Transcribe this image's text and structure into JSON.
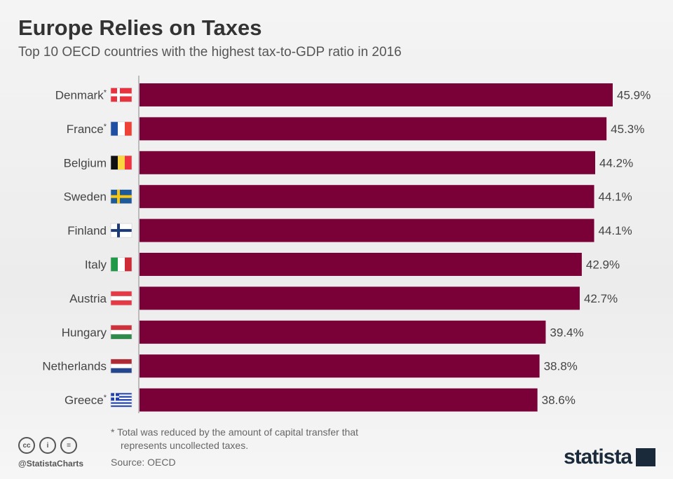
{
  "title": "Europe Relies on Taxes",
  "subtitle": "Top 10 OECD countries with the highest tax-to-GDP ratio in 2016",
  "chart_data": {
    "type": "bar",
    "orientation": "horizontal",
    "title": "Europe Relies on Taxes",
    "categories": [
      "Denmark*",
      "France*",
      "Belgium",
      "Sweden",
      "Finland",
      "Italy",
      "Austria",
      "Hungary",
      "Netherlands",
      "Greece*"
    ],
    "values": [
      45.9,
      45.3,
      44.2,
      44.1,
      44.1,
      42.9,
      42.7,
      39.4,
      38.8,
      38.6
    ],
    "labels": [
      "45.9%",
      "45.3%",
      "44.2%",
      "44.1%",
      "44.1%",
      "42.9%",
      "42.7%",
      "39.4%",
      "38.8%",
      "38.6%"
    ],
    "flags": [
      "dk",
      "fr",
      "be",
      "se",
      "fi",
      "it",
      "at",
      "hu",
      "nl",
      "gr"
    ],
    "unit": "%",
    "xlim": [
      0,
      46
    ],
    "xlabel": "",
    "ylabel": "",
    "grid": false,
    "bar_color": "#7a0038"
  },
  "footer": {
    "note_line1": "* Total was reduced by the amount of capital transfer that",
    "note_line2": "represents uncollected taxes.",
    "source": "Source: OECD",
    "handle": "@StatistaCharts",
    "cc_icons": [
      "cc",
      "i",
      "="
    ],
    "brand": "statista"
  }
}
